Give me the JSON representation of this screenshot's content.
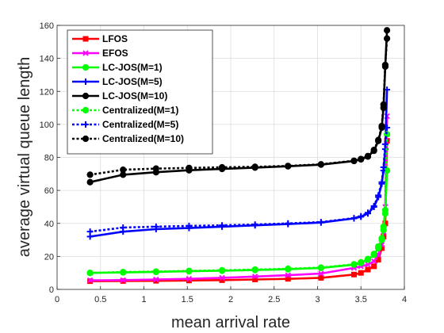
{
  "chart_data": {
    "type": "line",
    "title": "",
    "xlabel": "mean arrival rate",
    "ylabel": "average virtual queue length",
    "xlim": [
      0,
      4
    ],
    "ylim": [
      0,
      160
    ],
    "xticks": [
      0,
      0.5,
      1,
      1.5,
      2,
      2.5,
      3,
      3.5,
      4
    ],
    "yticks": [
      0,
      20,
      40,
      60,
      80,
      100,
      120,
      140,
      160
    ],
    "grid": true,
    "legend_position": "top-left",
    "series": [
      {
        "name": "LFOS",
        "color": "#ff0000",
        "line_style": "solid",
        "marker": "square",
        "points": [
          [
            0.38,
            5
          ],
          [
            0.76,
            5.1
          ],
          [
            1.14,
            5.2
          ],
          [
            1.52,
            5.4
          ],
          [
            1.9,
            5.6
          ],
          [
            2.28,
            6
          ],
          [
            2.66,
            6.4
          ],
          [
            3.04,
            7
          ],
          [
            3.42,
            9
          ],
          [
            3.5,
            10
          ],
          [
            3.58,
            12
          ],
          [
            3.65,
            14
          ],
          [
            3.7,
            18
          ],
          [
            3.74,
            25
          ],
          [
            3.76,
            32
          ],
          [
            3.78,
            40
          ],
          [
            3.8,
            90
          ]
        ]
      },
      {
        "name": "EFOS",
        "color": "#ff00ff",
        "line_style": "solid",
        "marker": "x",
        "points": [
          [
            0.38,
            5.5
          ],
          [
            0.76,
            5.6
          ],
          [
            1.14,
            6
          ],
          [
            1.52,
            6.4
          ],
          [
            1.9,
            7
          ],
          [
            2.28,
            7.8
          ],
          [
            2.66,
            8.6
          ],
          [
            3.04,
            9.6
          ],
          [
            3.42,
            13
          ],
          [
            3.5,
            14
          ],
          [
            3.58,
            15
          ],
          [
            3.65,
            17
          ],
          [
            3.7,
            21
          ],
          [
            3.74,
            27
          ],
          [
            3.76,
            35
          ],
          [
            3.78,
            50
          ],
          [
            3.8,
            105
          ]
        ]
      },
      {
        "name": "LC-JOS(M=1)",
        "color": "#00ff00",
        "line_style": "solid",
        "marker": "circle",
        "points": [
          [
            0.38,
            10
          ],
          [
            0.76,
            10.3
          ],
          [
            1.14,
            10.6
          ],
          [
            1.52,
            11
          ],
          [
            1.9,
            11.3
          ],
          [
            2.28,
            11.7
          ],
          [
            2.66,
            12.2
          ],
          [
            3.04,
            13
          ],
          [
            3.42,
            15
          ],
          [
            3.5,
            16
          ],
          [
            3.58,
            18
          ],
          [
            3.65,
            21
          ],
          [
            3.7,
            25
          ],
          [
            3.74,
            30
          ],
          [
            3.76,
            36
          ],
          [
            3.78,
            46
          ],
          [
            3.8,
            72
          ]
        ]
      },
      {
        "name": "LC-JOS(M=5)",
        "color": "#0000ff",
        "line_style": "solid",
        "marker": "plus",
        "points": [
          [
            0.38,
            32
          ],
          [
            0.76,
            35
          ],
          [
            1.14,
            36.5
          ],
          [
            1.52,
            37.2
          ],
          [
            1.9,
            38
          ],
          [
            2.28,
            38.8
          ],
          [
            2.66,
            39.6
          ],
          [
            3.04,
            40.5
          ],
          [
            3.42,
            43
          ],
          [
            3.5,
            44
          ],
          [
            3.58,
            46
          ],
          [
            3.65,
            50
          ],
          [
            3.7,
            56
          ],
          [
            3.74,
            64
          ],
          [
            3.76,
            72
          ],
          [
            3.78,
            85
          ],
          [
            3.8,
            121
          ]
        ]
      },
      {
        "name": "LC-JOS(M=10)",
        "color": "#000000",
        "line_style": "solid",
        "marker": "circle",
        "points": [
          [
            0.38,
            65
          ],
          [
            0.76,
            69.5
          ],
          [
            1.14,
            71
          ],
          [
            1.52,
            72.2
          ],
          [
            1.9,
            73
          ],
          [
            2.28,
            73.8
          ],
          [
            2.66,
            74.6
          ],
          [
            3.04,
            75.6
          ],
          [
            3.42,
            77.8
          ],
          [
            3.5,
            78.8
          ],
          [
            3.58,
            80.5
          ],
          [
            3.65,
            84
          ],
          [
            3.7,
            90
          ],
          [
            3.74,
            98
          ],
          [
            3.76,
            110
          ],
          [
            3.78,
            135
          ],
          [
            3.8,
            157
          ]
        ]
      },
      {
        "name": "Centralized(M=1)",
        "color": "#00ff00",
        "line_style": "dotted",
        "marker": "circle",
        "points": [
          [
            0.38,
            10
          ],
          [
            0.76,
            10.5
          ],
          [
            1.14,
            10.8
          ],
          [
            1.52,
            11.2
          ],
          [
            1.9,
            11.6
          ],
          [
            2.28,
            12
          ],
          [
            2.66,
            12.5
          ],
          [
            3.04,
            13.2
          ],
          [
            3.42,
            15.2
          ],
          [
            3.5,
            16.4
          ],
          [
            3.58,
            18.4
          ],
          [
            3.65,
            21.5
          ],
          [
            3.7,
            26
          ],
          [
            3.74,
            31
          ],
          [
            3.76,
            38
          ],
          [
            3.78,
            48
          ],
          [
            3.8,
            94
          ]
        ]
      },
      {
        "name": "Centralized(M=5)",
        "color": "#0000ff",
        "line_style": "dotted",
        "marker": "plus",
        "points": [
          [
            0.38,
            35
          ],
          [
            0.76,
            37.5
          ],
          [
            1.14,
            38
          ],
          [
            1.52,
            38.5
          ],
          [
            1.9,
            38.8
          ],
          [
            2.28,
            39.3
          ],
          [
            2.66,
            40
          ],
          [
            3.04,
            40.8
          ],
          [
            3.42,
            43.2
          ],
          [
            3.5,
            44.3
          ],
          [
            3.58,
            46.5
          ],
          [
            3.65,
            50.5
          ],
          [
            3.7,
            57
          ],
          [
            3.74,
            65
          ],
          [
            3.76,
            74
          ],
          [
            3.78,
            88
          ],
          [
            3.8,
            98
          ]
        ]
      },
      {
        "name": "Centralized(M=10)",
        "color": "#000000",
        "line_style": "dotted",
        "marker": "circle",
        "points": [
          [
            0.38,
            69.5
          ],
          [
            0.76,
            72.5
          ],
          [
            1.14,
            73.2
          ],
          [
            1.52,
            73.6
          ],
          [
            1.9,
            74
          ],
          [
            2.28,
            74.3
          ],
          [
            2.66,
            74.8
          ],
          [
            3.04,
            75.8
          ],
          [
            3.42,
            78
          ],
          [
            3.5,
            79
          ],
          [
            3.58,
            80.8
          ],
          [
            3.65,
            84.5
          ],
          [
            3.7,
            90.5
          ],
          [
            3.74,
            99
          ],
          [
            3.76,
            112
          ],
          [
            3.78,
            136
          ],
          [
            3.8,
            152
          ]
        ]
      }
    ]
  }
}
